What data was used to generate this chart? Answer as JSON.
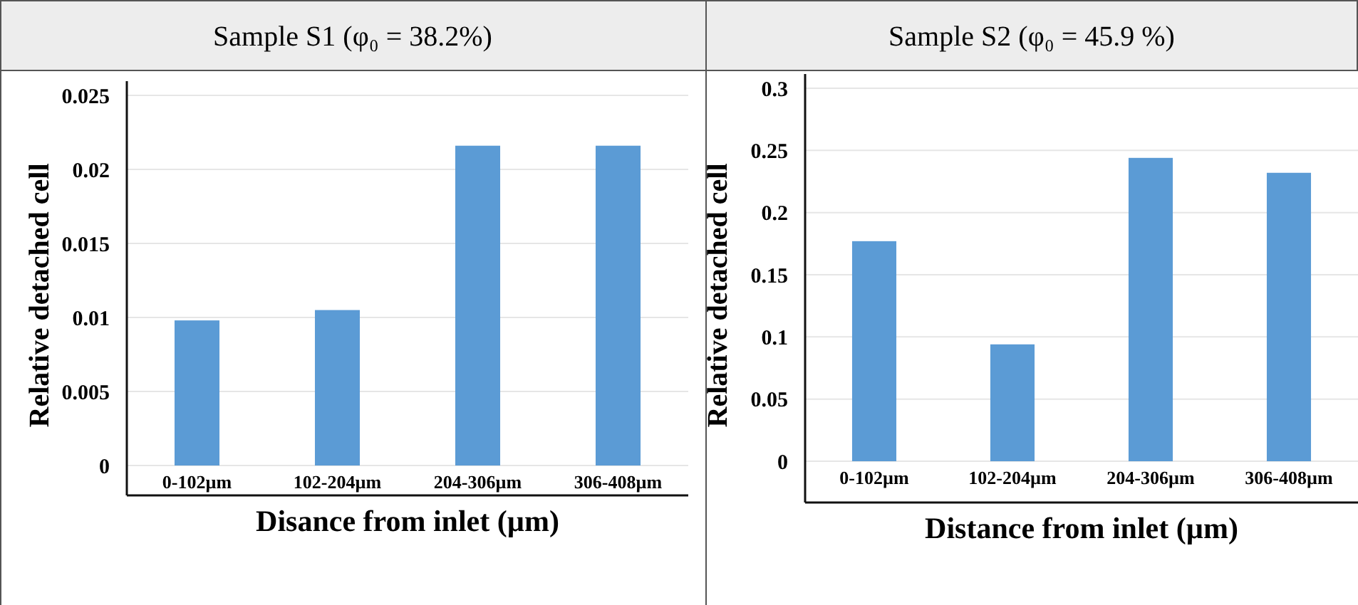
{
  "chart_data": [
    {
      "type": "bar",
      "title": "Sample S1 (φ₀ = 38.2%)",
      "xlabel": "Disance from inlet (µm)",
      "ylabel": "Relative detached cell",
      "categories": [
        "0-102µm",
        "102-204µm",
        "204-306µm",
        "306-408µm"
      ],
      "values": [
        0.0098,
        0.0105,
        0.0216,
        0.0216
      ],
      "color": "#5b9bd5",
      "ylim": [
        0,
        0.025
      ],
      "yticks": [
        0,
        0.005,
        0.01,
        0.015,
        0.02,
        0.025
      ],
      "grid": "y"
    },
    {
      "type": "bar",
      "title": "Sample S2 (φ₀ = 45.9 %)",
      "xlabel": "Distance from inlet (µm)",
      "ylabel": "Relative detached cell",
      "categories": [
        "0-102µm",
        "102-204µm",
        "204-306µm",
        "306-408µm"
      ],
      "values": [
        0.177,
        0.094,
        0.244,
        0.232
      ],
      "color": "#5b9bd5",
      "ylim": [
        0,
        0.3
      ],
      "yticks": [
        0,
        0.05,
        0.1,
        0.15,
        0.2,
        0.25,
        0.3
      ],
      "grid": "y"
    }
  ]
}
